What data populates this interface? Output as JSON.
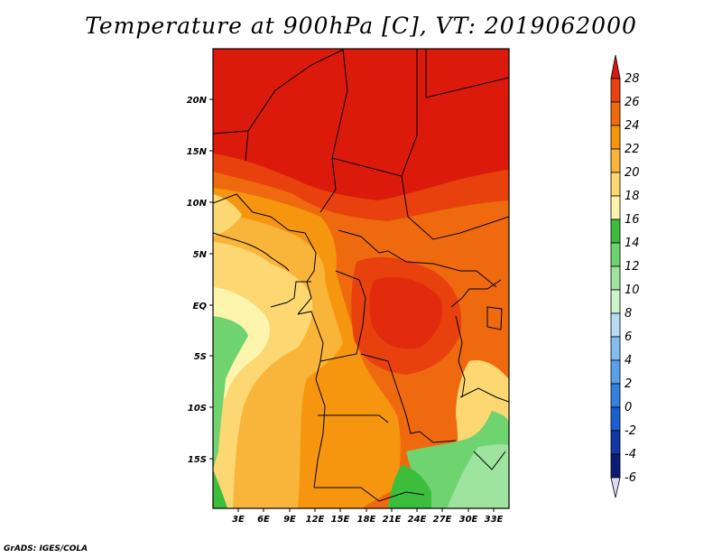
{
  "title": "Temperature at 900hPa [C], VT: 2019062000",
  "credit": "GrADS: IGES/COLA",
  "map": {
    "lat_labels": [
      "20N",
      "15N",
      "10N",
      "5N",
      "EQ",
      "5S",
      "10S",
      "15S"
    ],
    "lon_labels": [
      "3E",
      "6E",
      "9E",
      "12E",
      "15E",
      "18E",
      "21E",
      "24E",
      "27E",
      "30E",
      "33E"
    ]
  },
  "colorbar": {
    "levels": [
      "28",
      "26",
      "24",
      "22",
      "20",
      "18",
      "16",
      "14",
      "12",
      "10",
      "8",
      "6",
      "4",
      "2",
      "0",
      "-2",
      "-4",
      "-6"
    ],
    "colors": [
      "#dc1a0c",
      "#e8410e",
      "#ef6a0f",
      "#f6960e",
      "#f9b43a",
      "#fcd772",
      "#fdf4ad",
      "#3cbd3c",
      "#6fd36f",
      "#9ee39e",
      "#ccf3cc",
      "#b7dbf5",
      "#86bdef",
      "#5c9fe6",
      "#357fe0",
      "#1a5ecf",
      "#1238a8",
      "#0c1c74",
      "#dcdcf4"
    ]
  }
}
